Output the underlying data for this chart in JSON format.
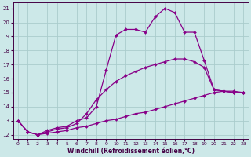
{
  "xlabel": "Windchill (Refroidissement éolien,°C)",
  "background_color": "#cce8e8",
  "grid_color": "#aacccc",
  "line_color": "#880088",
  "xlim_min": -0.5,
  "xlim_max": 23.5,
  "ylim_min": 11.7,
  "ylim_max": 21.4,
  "yticks": [
    12,
    13,
    14,
    15,
    16,
    17,
    18,
    19,
    20,
    21
  ],
  "xticks": [
    0,
    1,
    2,
    3,
    4,
    5,
    6,
    7,
    8,
    9,
    10,
    11,
    12,
    13,
    14,
    15,
    16,
    17,
    18,
    19,
    20,
    21,
    22,
    23
  ],
  "curve1_x": [
    0,
    1,
    2,
    3,
    4,
    5,
    6,
    7,
    8,
    9,
    10,
    11,
    12,
    13,
    14,
    15,
    16,
    17,
    18,
    19,
    20,
    21,
    22,
    23
  ],
  "curve1_y": [
    13.0,
    12.2,
    12.0,
    12.3,
    12.5,
    12.6,
    13.0,
    13.2,
    14.0,
    16.6,
    19.1,
    19.5,
    19.5,
    19.3,
    20.4,
    21.0,
    20.7,
    19.3,
    19.3,
    17.3,
    15.2,
    15.1,
    15.0,
    15.0
  ],
  "curve2_x": [
    0,
    1,
    2,
    3,
    4,
    5,
    6,
    7,
    8,
    9,
    10,
    11,
    12,
    13,
    14,
    15,
    16,
    17,
    18,
    19,
    20,
    21,
    22,
    23
  ],
  "curve2_y": [
    13.0,
    12.2,
    12.0,
    12.2,
    12.4,
    12.5,
    12.8,
    13.5,
    14.5,
    15.2,
    15.8,
    16.2,
    16.5,
    16.8,
    17.0,
    17.2,
    17.4,
    17.4,
    17.2,
    16.8,
    15.2,
    15.1,
    15.0,
    15.0
  ],
  "curve3_x": [
    0,
    1,
    2,
    3,
    4,
    5,
    6,
    7,
    8,
    9,
    10,
    11,
    12,
    13,
    14,
    15,
    16,
    17,
    18,
    19,
    20,
    21,
    22,
    23
  ],
  "curve3_y": [
    13.0,
    12.2,
    12.0,
    12.1,
    12.2,
    12.3,
    12.5,
    12.6,
    12.8,
    13.0,
    13.1,
    13.3,
    13.5,
    13.6,
    13.8,
    14.0,
    14.2,
    14.4,
    14.6,
    14.8,
    15.0,
    15.1,
    15.1,
    15.0
  ]
}
